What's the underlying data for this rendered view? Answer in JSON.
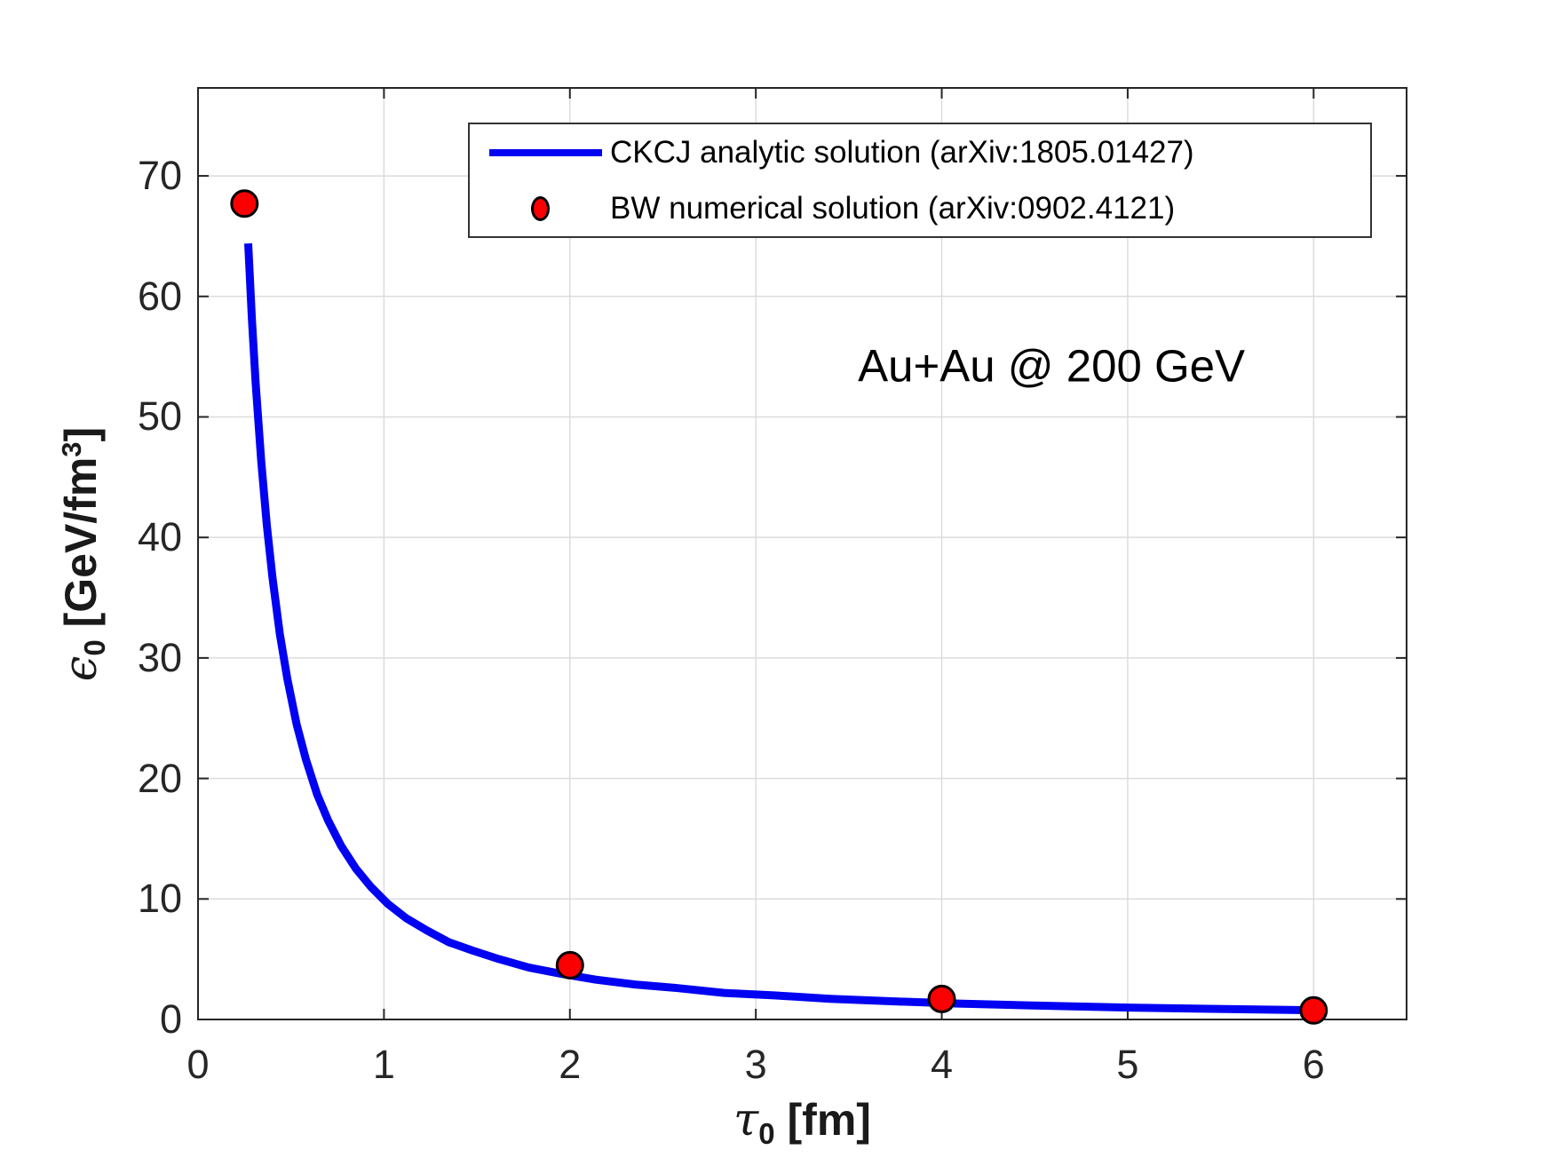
{
  "figure": {
    "background": "#ffffff",
    "annotation": "Au+Au @ 200 GeV"
  },
  "axes": {
    "xlabel": {
      "symbol": "τ",
      "sub": "0",
      "unit": " [fm]"
    },
    "ylabel": {
      "symbol": "ϵ",
      "sub": "0",
      "unit": " [GeV/fm",
      "sup": "3",
      "close": "]"
    }
  },
  "legend": {
    "entries": [
      {
        "type": "line",
        "label": "CKCJ analytic solution (arXiv:1805.01427)",
        "color": "#0202f2"
      },
      {
        "type": "marker",
        "label": "BW numerical solution (arXiv:0902.4121)",
        "color": "#fb0000"
      }
    ]
  },
  "colors": {
    "curve": "#0202f2",
    "marker_fill": "#fb0000",
    "marker_edge": "#000000",
    "grid": "#dcdcdc",
    "axis": "#262626",
    "tick_text": "#262626"
  },
  "chart_data": {
    "type": "line",
    "title": "",
    "xlabel": "tau_0 [fm]",
    "ylabel": "epsilon_0 [GeV/fm^3]",
    "xlim": [
      0,
      6.5
    ],
    "ylim": [
      0,
      77.3
    ],
    "x_ticks": [
      0,
      1,
      2,
      3,
      4,
      5,
      6
    ],
    "y_ticks": [
      0,
      10,
      20,
      30,
      40,
      50,
      60,
      70
    ],
    "grid": true,
    "legend_position": "top",
    "annotation": {
      "text": "Au+Au @ 200 GeV",
      "x": 4.59,
      "y": 54.2
    },
    "series": [
      {
        "name": "CKCJ analytic solution (arXiv:1805.01427)",
        "type": "line",
        "color": "#0202f2",
        "line_width": 9,
        "points": [
          [
            0.27,
            64.4
          ],
          [
            0.29,
            58.1
          ],
          [
            0.31,
            52.8
          ],
          [
            0.34,
            46.3
          ],
          [
            0.37,
            41.0
          ],
          [
            0.4,
            36.7
          ],
          [
            0.44,
            32.0
          ],
          [
            0.48,
            28.3
          ],
          [
            0.53,
            24.5
          ],
          [
            0.58,
            21.6
          ],
          [
            0.64,
            18.7
          ],
          [
            0.7,
            16.5
          ],
          [
            0.77,
            14.4
          ],
          [
            0.85,
            12.5
          ],
          [
            0.93,
            11.0
          ],
          [
            1.02,
            9.6
          ],
          [
            1.12,
            8.4
          ],
          [
            1.23,
            7.4
          ],
          [
            1.35,
            6.4
          ],
          [
            1.48,
            5.7
          ],
          [
            1.62,
            5.0
          ],
          [
            1.78,
            4.3
          ],
          [
            1.95,
            3.8
          ],
          [
            2.14,
            3.3
          ],
          [
            2.35,
            2.9
          ],
          [
            2.58,
            2.6
          ],
          [
            2.83,
            2.2
          ],
          [
            3.1,
            2.0
          ],
          [
            3.4,
            1.72
          ],
          [
            3.73,
            1.51
          ],
          [
            4.09,
            1.32
          ],
          [
            4.49,
            1.16
          ],
          [
            4.92,
            1.01
          ],
          [
            5.4,
            0.89
          ],
          [
            5.92,
            0.78
          ],
          [
            6.0,
            0.76
          ]
        ]
      },
      {
        "name": "BW numerical solution (arXiv:0902.4121)",
        "type": "scatter",
        "color": "#fb0000",
        "edge_color": "#000000",
        "marker_radius": 14.5,
        "points": [
          [
            0.25,
            67.7
          ],
          [
            2.0,
            4.5
          ],
          [
            4.0,
            1.7
          ],
          [
            6.0,
            0.75
          ]
        ]
      }
    ]
  }
}
